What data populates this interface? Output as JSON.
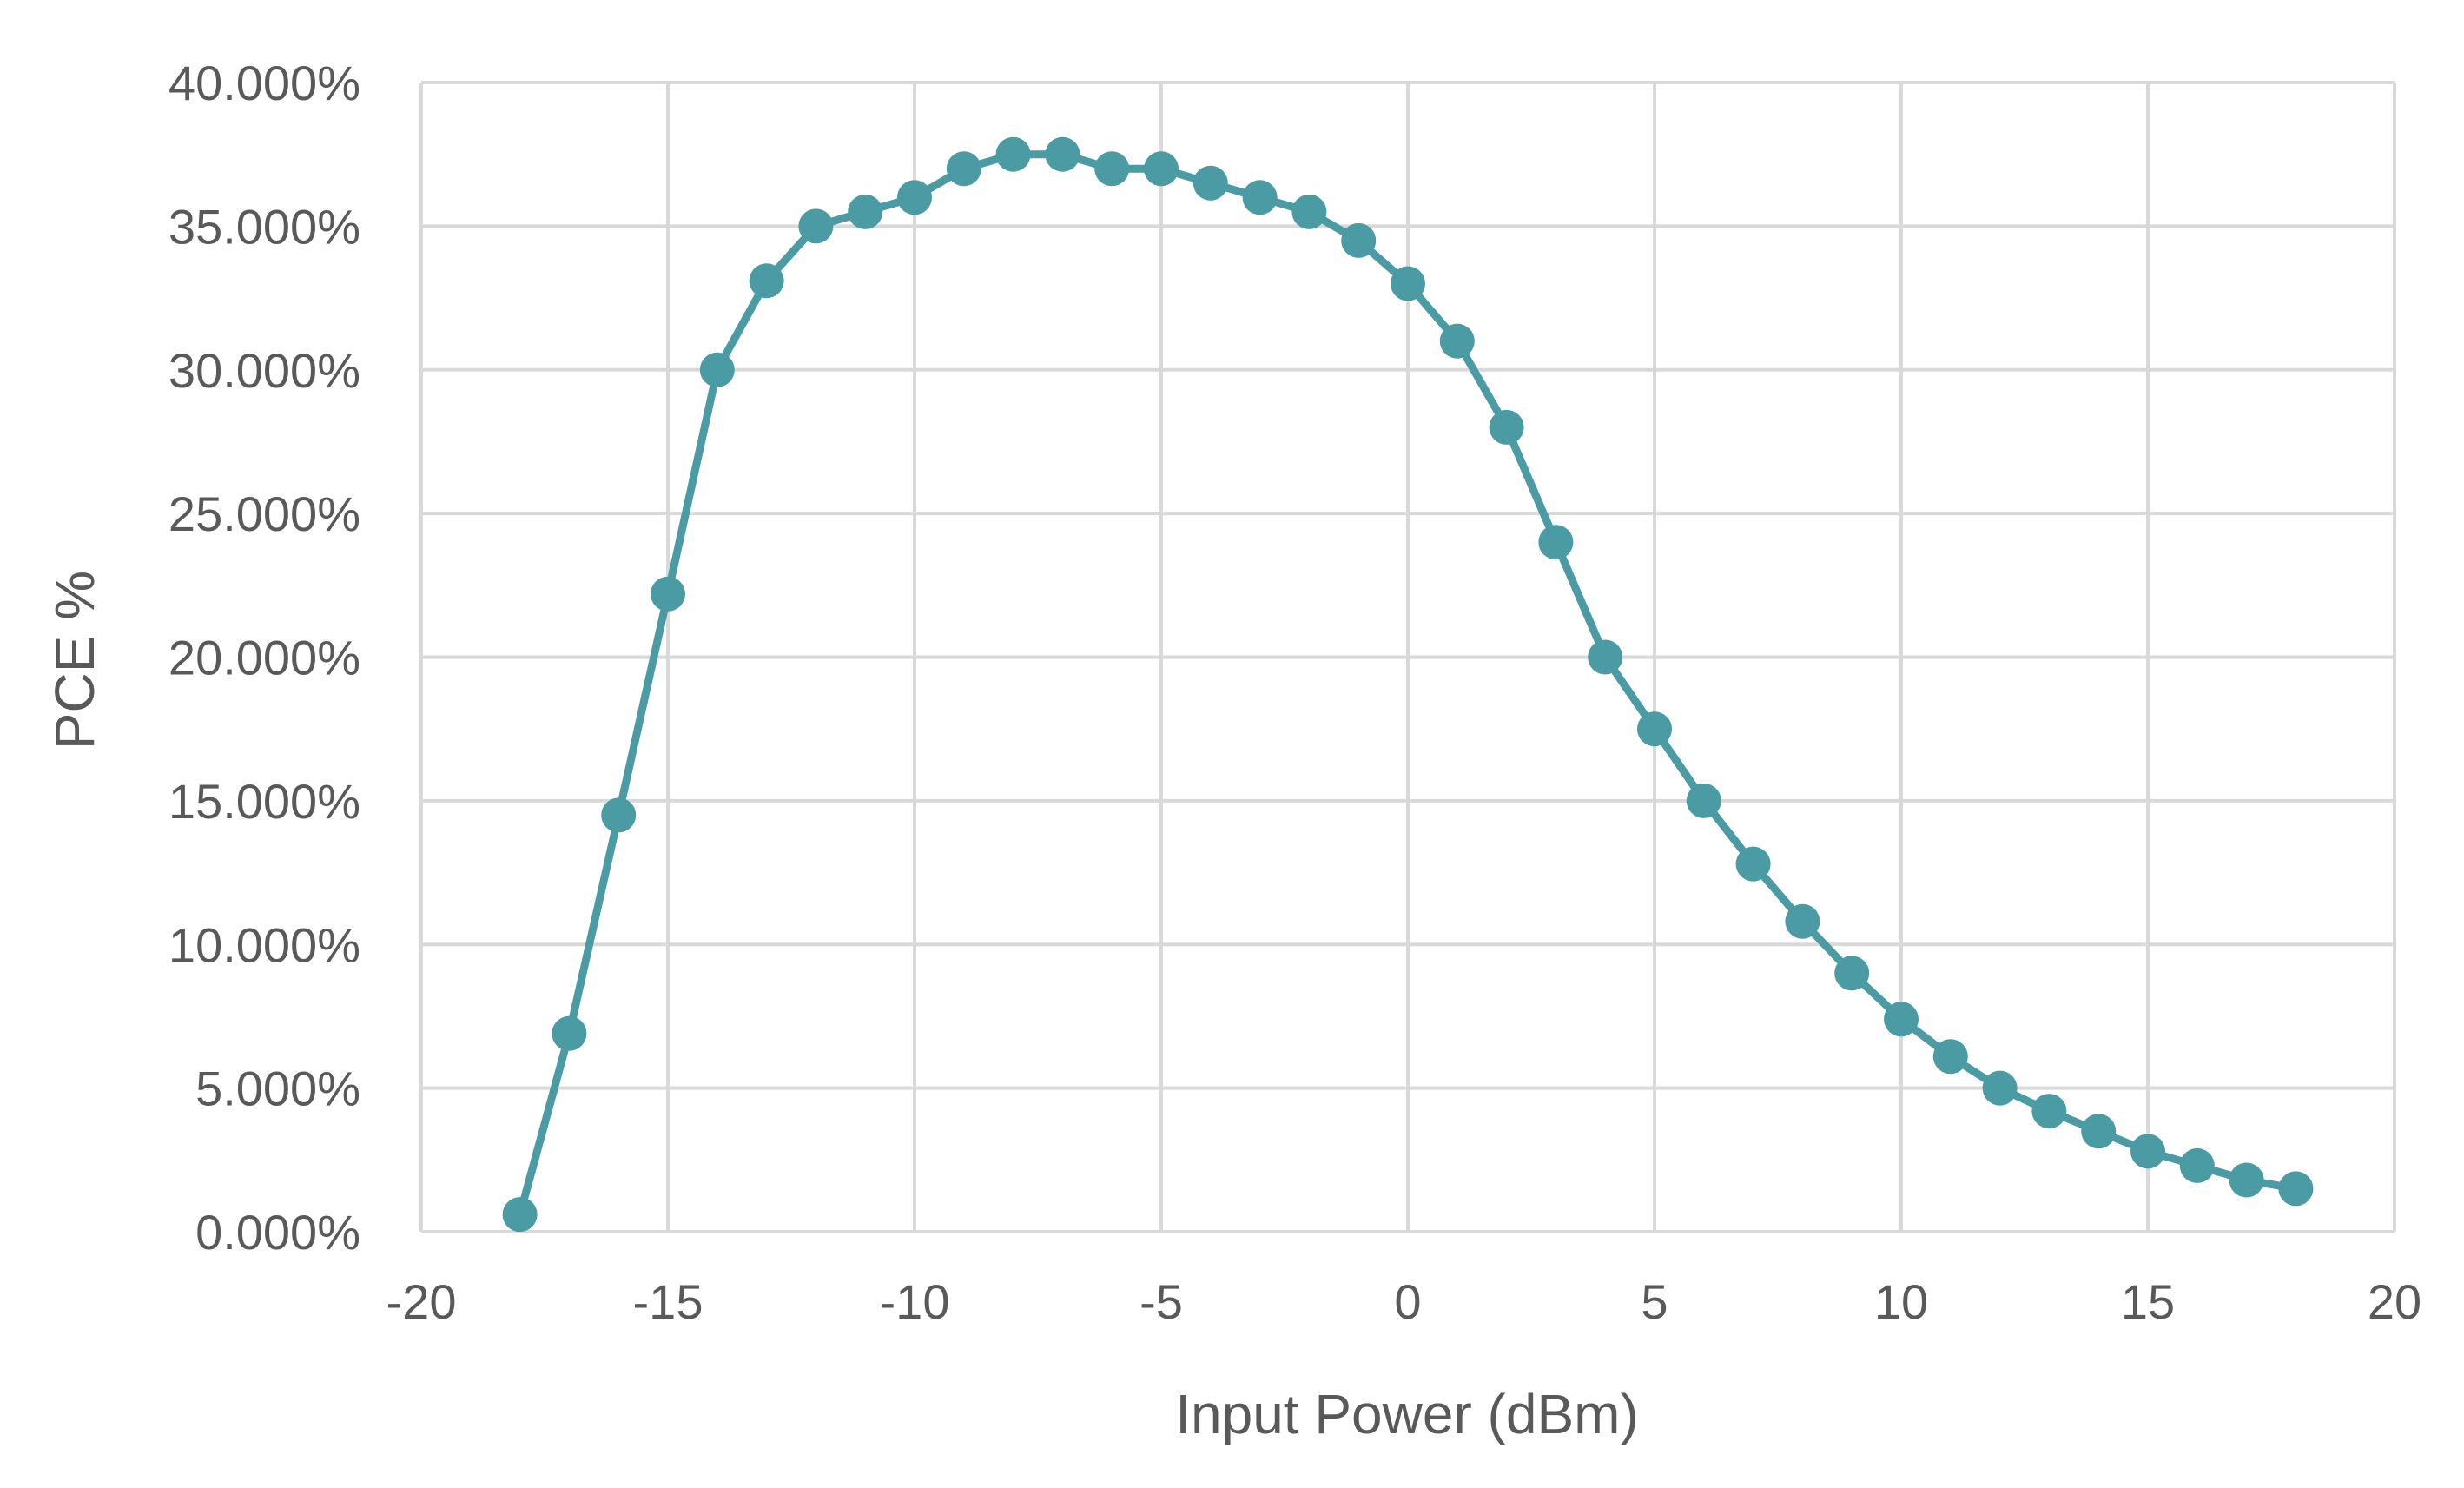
{
  "chart_data": {
    "type": "line",
    "xlabel": "Input Power (dBm)",
    "ylabel": "PCE %",
    "xlim": [
      -20,
      20
    ],
    "ylim": [
      0,
      40
    ],
    "x_ticks": [
      -20,
      -15,
      -10,
      -5,
      0,
      5,
      10,
      15,
      20
    ],
    "x_tick_labels": [
      "-20",
      "-15",
      "-10",
      "-5",
      "0",
      "5",
      "10",
      "15",
      "20"
    ],
    "y_ticks": [
      0,
      5,
      10,
      15,
      20,
      25,
      30,
      35,
      40
    ],
    "y_tick_labels": [
      "0.000%",
      "5.000%",
      "10.000%",
      "15.000%",
      "20.000%",
      "25.000%",
      "30.000%",
      "35.000%",
      "40.000%"
    ],
    "grid": true,
    "legend": "none",
    "series_color": "#4a9ba3",
    "grid_color": "#d9d9d9",
    "series": [
      {
        "x": [
          -18,
          -17,
          -16,
          -15,
          -14,
          -13,
          -12,
          -11,
          -10,
          -9,
          -8,
          -7,
          -6,
          -5,
          -4,
          -3,
          -2,
          -1,
          0,
          1,
          2,
          3,
          4,
          5,
          6,
          7,
          8,
          9,
          10,
          11,
          12,
          13,
          14,
          15,
          16,
          17,
          18
        ],
        "y": [
          0.6,
          6.9,
          14.5,
          22.2,
          30.0,
          33.1,
          35.0,
          35.5,
          36.0,
          37.0,
          37.5,
          37.5,
          37.0,
          37.0,
          36.5,
          36.0,
          35.5,
          34.5,
          33.0,
          31.0,
          28.0,
          24.0,
          20.0,
          17.5,
          15.0,
          12.8,
          10.8,
          9.0,
          7.4,
          6.1,
          5.0,
          4.2,
          3.5,
          2.8,
          2.3,
          1.8,
          1.5
        ]
      }
    ]
  }
}
